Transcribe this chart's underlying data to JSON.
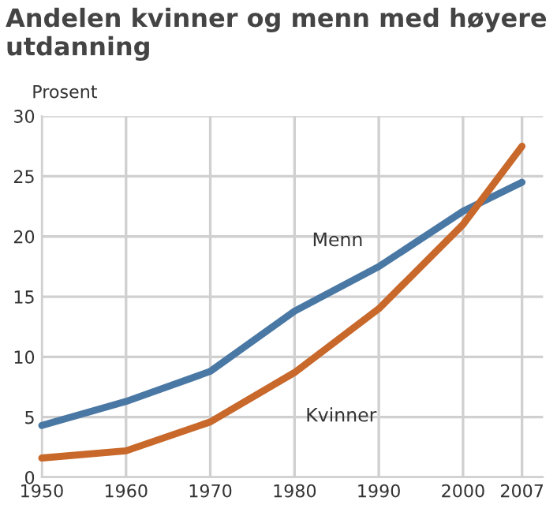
{
  "chart_data": {
    "type": "line",
    "title": "Andelen kvinner og menn med høyere\nutdanning",
    "ylabel": "Prosent",
    "x": [
      1950,
      1960,
      1970,
      1980,
      1990,
      2000,
      2007
    ],
    "series": [
      {
        "name": "Menn",
        "color": "#4a78a4",
        "values": [
          4.3,
          6.3,
          8.8,
          13.8,
          17.5,
          22.1,
          24.5
        ]
      },
      {
        "name": "Kvinner",
        "color": "#c8682a",
        "values": [
          1.6,
          2.2,
          4.6,
          8.7,
          14.0,
          21.0,
          27.5
        ]
      }
    ],
    "xlim": [
      1950,
      2009.5
    ],
    "ylim": [
      0,
      30
    ],
    "xticks": [
      1950,
      1960,
      1970,
      1980,
      1990,
      2000,
      2007
    ],
    "yticks": [
      0,
      5,
      10,
      15,
      20,
      25,
      30
    ],
    "grid": true,
    "line_style": "solid",
    "marker": "none"
  }
}
